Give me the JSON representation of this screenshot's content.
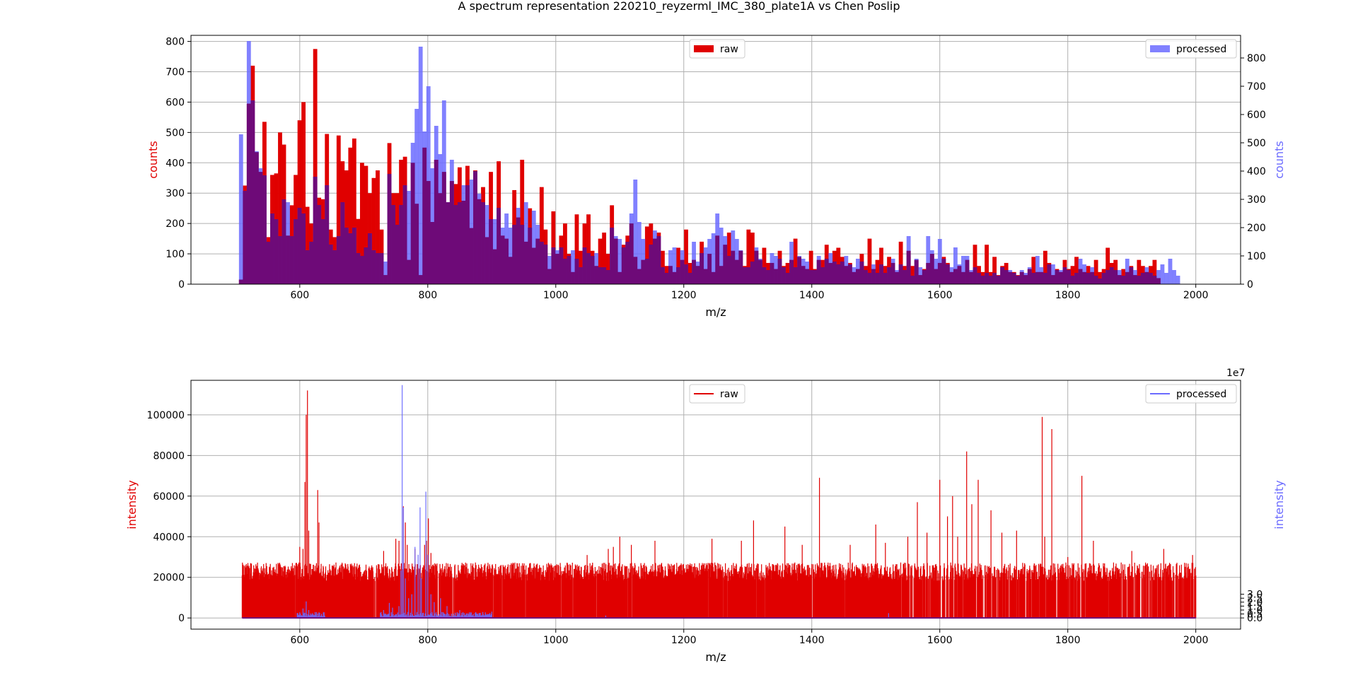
{
  "title": "A spectrum representation 220210_reyzerml_IMC_380_plate1A vs Chen Poslip",
  "colors": {
    "raw": "#e00000",
    "processed": "#6b6bff",
    "overlap": "#6e0a78",
    "grid": "#b0b0b0"
  },
  "chart_data": [
    {
      "type": "histogram",
      "xlabel": "m/z",
      "ylabel_left": "counts",
      "ylabel_right": "counts",
      "xlim": [
        430,
        2070
      ],
      "ylim_left": [
        0,
        820
      ],
      "ylim_right": [
        0,
        880
      ],
      "x_ticks": [
        600,
        800,
        1000,
        1200,
        1400,
        1600,
        1800,
        2000
      ],
      "y_ticks_left": [
        0,
        100,
        200,
        300,
        400,
        500,
        600,
        700,
        800
      ],
      "y_ticks_right": [
        0,
        100,
        200,
        300,
        400,
        500,
        600,
        700,
        800
      ],
      "grid": true,
      "bin_start": 505,
      "bin_width": 6.1,
      "series": [
        {
          "name": "raw",
          "axis": "left",
          "legend": "top-center",
          "values": [
            15,
            325,
            595,
            720,
            435,
            370,
            535,
            155,
            360,
            365,
            500,
            460,
            160,
            260,
            360,
            540,
            600,
            255,
            200,
            775,
            285,
            280,
            495,
            180,
            155,
            490,
            405,
            375,
            450,
            480,
            215,
            400,
            390,
            300,
            350,
            375,
            180,
            30,
            465,
            300,
            300,
            410,
            420,
            80,
            400,
            265,
            30,
            450,
            340,
            205,
            410,
            300,
            370,
            270,
            340,
            330,
            385,
            275,
            390,
            185,
            375,
            280,
            320,
            155,
            370,
            115,
            405,
            160,
            150,
            90,
            310,
            220,
            410,
            140,
            250,
            120,
            150,
            320,
            180,
            50,
            240,
            100,
            160,
            200,
            100,
            40,
            230,
            110,
            200,
            230,
            110,
            60,
            150,
            170,
            100,
            260,
            150,
            40,
            130,
            160,
            200,
            90,
            50,
            80,
            190,
            200,
            150,
            170,
            110,
            60,
            60,
            40,
            120,
            80,
            180,
            70,
            80,
            60,
            140,
            50,
            100,
            40,
            160,
            60,
            130,
            170,
            110,
            80,
            110,
            60,
            180,
            170,
            110,
            80,
            120,
            70,
            70,
            50,
            110,
            60,
            70,
            80,
            150,
            90,
            60,
            50,
            110,
            50,
            80,
            80,
            130,
            70,
            110,
            120,
            90,
            60,
            70,
            40,
            50,
            100,
            60,
            150,
            50,
            80,
            120,
            60,
            90,
            70,
            40,
            140,
            60,
            110,
            60,
            80,
            30,
            50,
            70,
            100,
            50,
            70,
            90,
            70,
            40,
            50,
            60,
            40,
            80,
            40,
            130,
            60,
            40,
            130,
            40,
            90,
            30,
            60,
            70,
            40,
            40,
            30,
            40,
            30,
            50,
            90,
            40,
            40,
            110,
            70,
            30,
            50,
            40,
            80,
            50,
            60,
            90,
            50,
            40,
            60,
            40,
            80,
            40,
            50,
            120,
            70,
            80,
            30,
            50,
            40,
            60,
            30,
            80,
            60,
            40,
            60,
            80,
            20
          ]
        },
        {
          "name": "processed",
          "axis": "right",
          "legend": "top-right",
          "values": [
            530,
            330,
            860,
            650,
            470,
            410,
            385,
            150,
            250,
            230,
            170,
            300,
            290,
            170,
            230,
            270,
            250,
            120,
            150,
            380,
            280,
            230,
            350,
            140,
            120,
            170,
            290,
            200,
            180,
            200,
            110,
            100,
            130,
            180,
            120,
            110,
            110,
            80,
            390,
            280,
            210,
            280,
            350,
            330,
            500,
            620,
            840,
            540,
            700,
            410,
            560,
            460,
            650,
            290,
            440,
            280,
            290,
            350,
            350,
            370,
            400,
            320,
            290,
            280,
            230,
            230,
            270,
            200,
            250,
            200,
            210,
            270,
            210,
            290,
            200,
            260,
            210,
            150,
            140,
            100,
            130,
            120,
            130,
            90,
            100,
            120,
            90,
            60,
            130,
            110,
            100,
            110,
            60,
            60,
            50,
            200,
            170,
            160,
            130,
            150,
            250,
            370,
            220,
            160,
            90,
            140,
            190,
            170,
            60,
            40,
            120,
            130,
            60,
            120,
            70,
            40,
            150,
            80,
            110,
            130,
            160,
            180,
            250,
            200,
            170,
            100,
            190,
            160,
            120,
            60,
            60,
            80,
            130,
            90,
            60,
            50,
            110,
            100,
            90,
            60,
            40,
            150,
            60,
            100,
            90,
            80,
            50,
            50,
            100,
            60,
            90,
            110,
            80,
            70,
            80,
            100,
            70,
            60,
            90,
            80,
            50,
            40,
            70,
            40,
            70,
            40,
            60,
            90,
            50,
            70,
            50,
            170,
            30,
            90,
            60,
            50,
            170,
            120,
            90,
            160,
            90,
            70,
            60,
            130,
            70,
            100,
            100,
            50,
            60,
            40,
            30,
            40,
            30,
            40,
            30,
            60,
            50,
            50,
            40,
            30,
            50,
            40,
            60,
            40,
            100,
            60,
            40,
            70,
            70,
            50,
            50,
            60,
            50,
            30,
            40,
            90,
            70,
            40,
            60,
            30,
            20,
            40,
            50,
            60,
            50,
            50,
            30,
            90,
            60,
            50,
            30,
            40,
            60,
            40,
            30,
            50,
            70,
            40,
            90,
            50,
            30
          ]
        }
      ]
    },
    {
      "type": "line",
      "xlabel": "m/z",
      "ylabel_left": "intensity",
      "ylabel_right": "intensity",
      "offset_text_right": "1e7",
      "xlim": [
        430,
        2070
      ],
      "ylim_left": [
        -5500,
        117000
      ],
      "ylim_right": [
        -1.42,
        30.1
      ],
      "x_ticks": [
        600,
        800,
        1000,
        1200,
        1400,
        1600,
        1800,
        2000
      ],
      "y_ticks_left": [
        0,
        20000,
        40000,
        60000,
        80000,
        100000
      ],
      "y_ticks_right": [
        0.0,
        0.5,
        1.0,
        1.5,
        2.0,
        2.5,
        3.0
      ],
      "grid": true,
      "series": [
        {
          "name": "raw",
          "axis": "left",
          "legend": "top-center",
          "range": [
            510,
            2000
          ],
          "baseline": 26000,
          "peaks": [
            [
              512,
              21000
            ],
            [
              523,
              27000
            ],
            [
              600,
              35000
            ],
            [
              605,
              34000
            ],
            [
              608,
              67000
            ],
            [
              610,
              100000
            ],
            [
              612,
              112000
            ],
            [
              614,
              43000
            ],
            [
              628,
              63000
            ],
            [
              630,
              47000
            ],
            [
              731,
              33000
            ],
            [
              750,
              39000
            ],
            [
              755,
              38000
            ],
            [
              762,
              55000
            ],
            [
              765,
              47000
            ],
            [
              768,
              36000
            ],
            [
              780,
              34000
            ],
            [
              795,
              36000
            ],
            [
              798,
              38000
            ],
            [
              801,
              49000
            ],
            [
              805,
              32000
            ],
            [
              1049,
              31000
            ],
            [
              1082,
              34000
            ],
            [
              1090,
              35000
            ],
            [
              1100,
              40000
            ],
            [
              1118,
              36000
            ],
            [
              1155,
              38000
            ],
            [
              1244,
              39000
            ],
            [
              1290,
              38000
            ],
            [
              1309,
              48000
            ],
            [
              1358,
              45000
            ],
            [
              1385,
              36000
            ],
            [
              1412,
              69000
            ],
            [
              1460,
              36000
            ],
            [
              1500,
              46000
            ],
            [
              1515,
              37000
            ],
            [
              1550,
              40000
            ],
            [
              1565,
              57000
            ],
            [
              1580,
              42000
            ],
            [
              1600,
              68000
            ],
            [
              1612,
              50000
            ],
            [
              1620,
              60000
            ],
            [
              1628,
              40000
            ],
            [
              1642,
              82000
            ],
            [
              1650,
              56000
            ],
            [
              1660,
              68000
            ],
            [
              1680,
              53000
            ],
            [
              1697,
              42000
            ],
            [
              1720,
              43000
            ],
            [
              1760,
              99000
            ],
            [
              1764,
              40000
            ],
            [
              1775,
              93000
            ],
            [
              1800,
              30000
            ],
            [
              1822,
              70000
            ],
            [
              1840,
              38000
            ],
            [
              1900,
              33000
            ],
            [
              1950,
              34000
            ],
            [
              1995,
              31000
            ]
          ]
        },
        {
          "name": "processed",
          "axis": "right",
          "legend": "top-right",
          "range": [
            510,
            2000
          ],
          "baseline": 0.05,
          "peaks": [
            [
              600,
              0.7
            ],
            [
              605,
              1.2
            ],
            [
              610,
              2.1
            ],
            [
              614,
              1.0
            ],
            [
              620,
              0.6
            ],
            [
              630,
              0.5
            ],
            [
              731,
              1.0
            ],
            [
              740,
              1.9
            ],
            [
              745,
              1.3
            ],
            [
              755,
              1.5
            ],
            [
              758,
              6.0
            ],
            [
              760,
              29.5
            ],
            [
              762,
              14.0
            ],
            [
              765,
              5.0
            ],
            [
              770,
              2.5
            ],
            [
              775,
              3.0
            ],
            [
              780,
              9.0
            ],
            [
              785,
              8.0
            ],
            [
              788,
              14.0
            ],
            [
              790,
              5.0
            ],
            [
              797,
              16.0
            ],
            [
              800,
              8.0
            ],
            [
              805,
              3.0
            ],
            [
              810,
              2.0
            ],
            [
              820,
              2.5
            ],
            [
              830,
              1.5
            ],
            [
              850,
              1.0
            ],
            [
              900,
              0.8
            ],
            [
              1078,
              0.3
            ],
            [
              1520,
              0.6
            ]
          ]
        }
      ]
    }
  ]
}
